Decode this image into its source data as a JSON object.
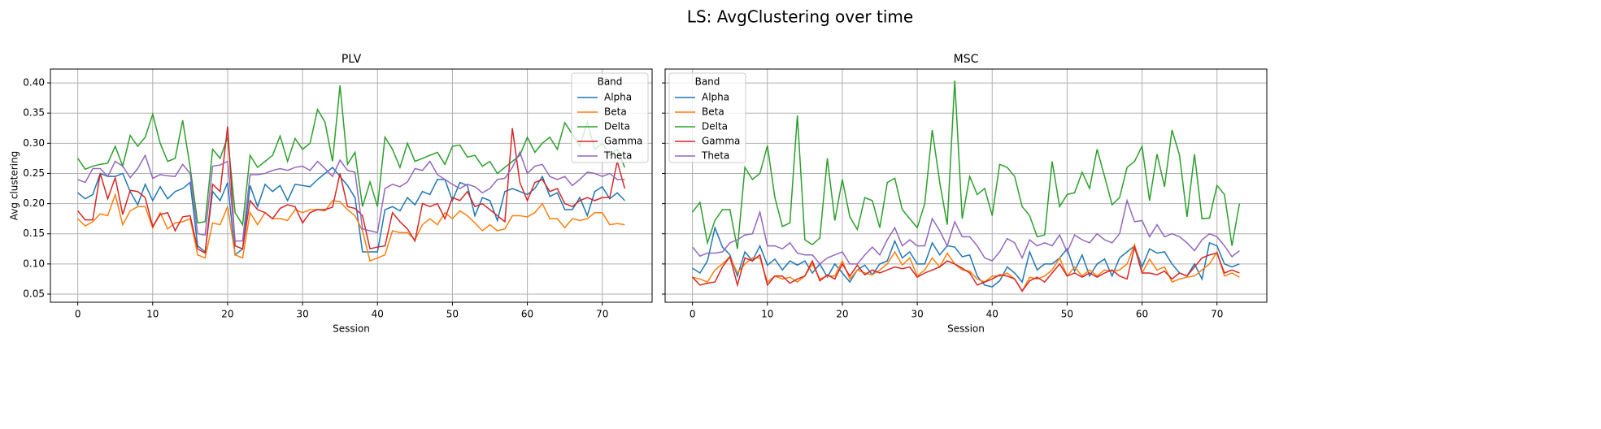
{
  "title": "LS: AvgClustering over time",
  "chart_data": [
    {
      "type": "line",
      "title": "PLV",
      "xlabel": "Session",
      "ylabel": "Avg clustering",
      "legend_title": "Band",
      "legend": "upper right",
      "grid": true,
      "x": [
        0,
        1,
        2,
        3,
        4,
        5,
        6,
        7,
        8,
        9,
        10,
        11,
        12,
        13,
        14,
        15,
        16,
        17,
        18,
        19,
        20,
        21,
        22,
        23,
        24,
        25,
        26,
        27,
        28,
        29,
        30,
        31,
        32,
        33,
        34,
        35,
        36,
        37,
        38,
        39,
        40,
        41,
        42,
        43,
        44,
        45,
        46,
        47,
        48,
        49,
        50,
        51,
        52,
        53,
        54,
        55,
        56,
        57,
        58,
        59,
        60,
        61,
        62,
        63,
        64,
        65,
        66,
        67,
        68,
        69,
        70,
        71,
        72,
        73
      ],
      "xlim": [
        -3.65,
        76.65
      ],
      "xticks": [
        0,
        10,
        20,
        30,
        40,
        50,
        60,
        70
      ],
      "ylim": [
        0.0365,
        0.423
      ],
      "yticks": [
        {
          "value": 0.05,
          "label": "0.05"
        },
        {
          "value": 0.1,
          "label": "0.10"
        },
        {
          "value": 0.15,
          "label": "0.15"
        },
        {
          "value": 0.2,
          "label": "0.20"
        },
        {
          "value": 0.25,
          "label": "0.25"
        },
        {
          "value": 0.3,
          "label": "0.30"
        },
        {
          "value": 0.35,
          "label": "0.35"
        },
        {
          "value": 0.4,
          "label": "0.40"
        }
      ],
      "series": [
        {
          "name": "Alpha",
          "color": "#1f77b4",
          "values": [
            0.218,
            0.208,
            0.215,
            0.25,
            0.245,
            0.245,
            0.25,
            0.22,
            0.198,
            0.232,
            0.205,
            0.228,
            0.208,
            0.22,
            0.225,
            0.235,
            0.13,
            0.12,
            0.22,
            0.205,
            0.235,
            0.115,
            0.125,
            0.23,
            0.195,
            0.232,
            0.22,
            0.23,
            0.205,
            0.232,
            0.23,
            0.228,
            0.24,
            0.25,
            0.26,
            0.245,
            0.23,
            0.21,
            0.12,
            0.12,
            0.12,
            0.19,
            0.195,
            0.188,
            0.21,
            0.198,
            0.22,
            0.215,
            0.24,
            0.24,
            0.205,
            0.235,
            0.23,
            0.18,
            0.21,
            0.205,
            0.172,
            0.22,
            0.225,
            0.22,
            0.215,
            0.225,
            0.245,
            0.212,
            0.218,
            0.19,
            0.19,
            0.21,
            0.18,
            0.22,
            0.228,
            0.208,
            0.218,
            0.205
          ]
        },
        {
          "name": "Beta",
          "color": "#ff7f0e",
          "values": [
            0.175,
            0.163,
            0.17,
            0.183,
            0.18,
            0.215,
            0.165,
            0.188,
            0.195,
            0.195,
            0.16,
            0.185,
            0.158,
            0.168,
            0.17,
            0.175,
            0.115,
            0.11,
            0.168,
            0.165,
            0.195,
            0.115,
            0.11,
            0.185,
            0.165,
            0.185,
            0.175,
            0.175,
            0.172,
            0.19,
            0.185,
            0.19,
            0.19,
            0.188,
            0.205,
            0.203,
            0.19,
            0.18,
            0.155,
            0.105,
            0.11,
            0.115,
            0.155,
            0.152,
            0.152,
            0.14,
            0.165,
            0.175,
            0.165,
            0.185,
            0.175,
            0.188,
            0.18,
            0.168,
            0.155,
            0.165,
            0.155,
            0.158,
            0.18,
            0.18,
            0.178,
            0.185,
            0.2,
            0.175,
            0.175,
            0.16,
            0.175,
            0.172,
            0.175,
            0.185,
            0.185,
            0.165,
            0.167,
            0.165
          ]
        },
        {
          "name": "Delta",
          "color": "#2ca02c",
          "values": [
            0.275,
            0.257,
            0.262,
            0.265,
            0.267,
            0.295,
            0.262,
            0.313,
            0.295,
            0.31,
            0.348,
            0.3,
            0.27,
            0.275,
            0.338,
            0.26,
            0.168,
            0.17,
            0.29,
            0.275,
            0.31,
            0.185,
            0.165,
            0.28,
            0.26,
            0.27,
            0.28,
            0.312,
            0.27,
            0.308,
            0.29,
            0.3,
            0.356,
            0.335,
            0.27,
            0.396,
            0.265,
            0.285,
            0.195,
            0.236,
            0.195,
            0.31,
            0.29,
            0.26,
            0.3,
            0.27,
            0.275,
            0.28,
            0.285,
            0.265,
            0.295,
            0.297,
            0.277,
            0.28,
            0.262,
            0.27,
            0.25,
            0.26,
            0.27,
            0.28,
            0.31,
            0.285,
            0.3,
            0.31,
            0.29,
            0.334,
            0.315,
            0.295,
            0.335,
            0.29,
            0.3,
            0.28,
            0.29,
            0.26
          ]
        },
        {
          "name": "Gamma",
          "color": "#d62728",
          "values": [
            0.188,
            0.173,
            0.173,
            0.25,
            0.208,
            0.243,
            0.182,
            0.222,
            0.22,
            0.21,
            0.162,
            0.182,
            0.185,
            0.155,
            0.178,
            0.18,
            0.125,
            0.118,
            0.232,
            0.22,
            0.328,
            0.13,
            0.125,
            0.205,
            0.19,
            0.185,
            0.175,
            0.192,
            0.198,
            0.195,
            0.168,
            0.185,
            0.19,
            0.19,
            0.194,
            0.25,
            0.195,
            0.192,
            0.18,
            0.125,
            0.128,
            0.13,
            0.185,
            0.17,
            0.158,
            0.138,
            0.2,
            0.195,
            0.2,
            0.175,
            0.21,
            0.205,
            0.22,
            0.195,
            0.2,
            0.19,
            0.18,
            0.17,
            0.325,
            0.235,
            0.205,
            0.235,
            0.24,
            0.22,
            0.225,
            0.2,
            0.195,
            0.205,
            0.21,
            0.205,
            0.21,
            0.21,
            0.27,
            0.225
          ]
        },
        {
          "name": "Theta",
          "color": "#9467bd",
          "values": [
            0.24,
            0.235,
            0.258,
            0.258,
            0.245,
            0.27,
            0.262,
            0.243,
            0.258,
            0.28,
            0.242,
            0.248,
            0.246,
            0.245,
            0.265,
            0.25,
            0.15,
            0.148,
            0.262,
            0.264,
            0.27,
            0.138,
            0.138,
            0.248,
            0.248,
            0.25,
            0.255,
            0.258,
            0.255,
            0.26,
            0.262,
            0.255,
            0.27,
            0.258,
            0.245,
            0.272,
            0.255,
            0.252,
            0.158,
            0.155,
            0.152,
            0.225,
            0.232,
            0.228,
            0.236,
            0.258,
            0.255,
            0.27,
            0.248,
            0.24,
            0.232,
            0.225,
            0.232,
            0.228,
            0.218,
            0.225,
            0.24,
            0.242,
            0.26,
            0.285,
            0.25,
            0.262,
            0.265,
            0.245,
            0.24,
            0.245,
            0.23,
            0.24,
            0.252,
            0.25,
            0.245,
            0.25,
            0.24,
            0.24
          ]
        }
      ]
    },
    {
      "type": "line",
      "title": "MSC",
      "xlabel": "Session",
      "legend_title": "Band",
      "legend": "upper left",
      "grid": true,
      "x": [
        0,
        1,
        2,
        3,
        4,
        5,
        6,
        7,
        8,
        9,
        10,
        11,
        12,
        13,
        14,
        15,
        16,
        17,
        18,
        19,
        20,
        21,
        22,
        23,
        24,
        25,
        26,
        27,
        28,
        29,
        30,
        31,
        32,
        33,
        34,
        35,
        36,
        37,
        38,
        39,
        40,
        41,
        42,
        43,
        44,
        45,
        46,
        47,
        48,
        49,
        50,
        51,
        52,
        53,
        54,
        55,
        56,
        57,
        58,
        59,
        60,
        61,
        62,
        63,
        64,
        65,
        66,
        67,
        68,
        69,
        70,
        71,
        72,
        73
      ],
      "xlim": [
        -3.65,
        76.65
      ],
      "xticks": [
        0,
        10,
        20,
        30,
        40,
        50,
        60,
        70
      ],
      "ylim": [
        0.0365,
        0.423
      ],
      "yticks": [
        0.05,
        0.1,
        0.15,
        0.2,
        0.25,
        0.3,
        0.35,
        0.4
      ],
      "series": [
        {
          "name": "Alpha",
          "color": "#1f77b4",
          "values": [
            0.093,
            0.085,
            0.105,
            0.16,
            0.128,
            0.115,
            0.08,
            0.12,
            0.105,
            0.13,
            0.098,
            0.108,
            0.09,
            0.105,
            0.098,
            0.105,
            0.085,
            0.1,
            0.078,
            0.1,
            0.085,
            0.07,
            0.09,
            0.098,
            0.082,
            0.1,
            0.105,
            0.138,
            0.11,
            0.12,
            0.1,
            0.1,
            0.135,
            0.115,
            0.13,
            0.128,
            0.112,
            0.115,
            0.08,
            0.065,
            0.062,
            0.072,
            0.095,
            0.085,
            0.07,
            0.12,
            0.09,
            0.1,
            0.1,
            0.11,
            0.125,
            0.088,
            0.115,
            0.08,
            0.1,
            0.108,
            0.08,
            0.11,
            0.12,
            0.13,
            0.095,
            0.125,
            0.118,
            0.12,
            0.1,
            0.085,
            0.08,
            0.1,
            0.075,
            0.135,
            0.13,
            0.1,
            0.095,
            0.1
          ]
        },
        {
          "name": "Beta",
          "color": "#ff7f0e",
          "values": [
            0.078,
            0.075,
            0.07,
            0.09,
            0.1,
            0.112,
            0.085,
            0.1,
            0.11,
            0.11,
            0.07,
            0.08,
            0.075,
            0.078,
            0.07,
            0.08,
            0.1,
            0.075,
            0.08,
            0.08,
            0.105,
            0.075,
            0.09,
            0.085,
            0.082,
            0.09,
            0.1,
            0.12,
            0.098,
            0.11,
            0.08,
            0.09,
            0.11,
            0.095,
            0.118,
            0.1,
            0.09,
            0.088,
            0.075,
            0.07,
            0.08,
            0.08,
            0.085,
            0.075,
            0.055,
            0.078,
            0.075,
            0.08,
            0.09,
            0.11,
            0.08,
            0.095,
            0.08,
            0.09,
            0.08,
            0.09,
            0.088,
            0.09,
            0.1,
            0.132,
            0.085,
            0.108,
            0.09,
            0.095,
            0.07,
            0.075,
            0.078,
            0.08,
            0.09,
            0.1,
            0.12,
            0.08,
            0.085,
            0.078
          ]
        },
        {
          "name": "Delta",
          "color": "#2ca02c",
          "values": [
            0.186,
            0.202,
            0.135,
            0.172,
            0.19,
            0.19,
            0.125,
            0.26,
            0.24,
            0.25,
            0.296,
            0.21,
            0.162,
            0.168,
            0.346,
            0.14,
            0.132,
            0.143,
            0.275,
            0.172,
            0.24,
            0.178,
            0.157,
            0.21,
            0.205,
            0.16,
            0.235,
            0.242,
            0.19,
            0.175,
            0.16,
            0.2,
            0.322,
            0.235,
            0.165,
            0.404,
            0.175,
            0.245,
            0.215,
            0.225,
            0.18,
            0.265,
            0.26,
            0.245,
            0.195,
            0.18,
            0.145,
            0.148,
            0.27,
            0.195,
            0.215,
            0.218,
            0.252,
            0.225,
            0.29,
            0.245,
            0.198,
            0.21,
            0.26,
            0.27,
            0.295,
            0.205,
            0.282,
            0.228,
            0.322,
            0.28,
            0.178,
            0.282,
            0.175,
            0.176,
            0.23,
            0.215,
            0.13,
            0.2
          ]
        },
        {
          "name": "Gamma",
          "color": "#d62728",
          "values": [
            0.078,
            0.065,
            0.068,
            0.07,
            0.095,
            0.112,
            0.065,
            0.11,
            0.105,
            0.115,
            0.065,
            0.08,
            0.08,
            0.068,
            0.075,
            0.08,
            0.105,
            0.072,
            0.082,
            0.075,
            0.1,
            0.08,
            0.098,
            0.082,
            0.09,
            0.085,
            0.09,
            0.095,
            0.092,
            0.095,
            0.078,
            0.085,
            0.09,
            0.095,
            0.105,
            0.1,
            0.093,
            0.085,
            0.065,
            0.07,
            0.075,
            0.082,
            0.08,
            0.075,
            0.055,
            0.072,
            0.078,
            0.07,
            0.085,
            0.1,
            0.08,
            0.085,
            0.078,
            0.085,
            0.078,
            0.085,
            0.09,
            0.08,
            0.075,
            0.128,
            0.085,
            0.085,
            0.082,
            0.088,
            0.075,
            0.085,
            0.08,
            0.095,
            0.11,
            0.115,
            0.118,
            0.085,
            0.09,
            0.085
          ]
        },
        {
          "name": "Theta",
          "color": "#9467bd",
          "values": [
            0.128,
            0.113,
            0.118,
            0.118,
            0.12,
            0.135,
            0.14,
            0.148,
            0.15,
            0.186,
            0.13,
            0.13,
            0.125,
            0.135,
            0.118,
            0.115,
            0.115,
            0.1,
            0.11,
            0.115,
            0.12,
            0.1,
            0.1,
            0.115,
            0.128,
            0.115,
            0.14,
            0.16,
            0.13,
            0.14,
            0.13,
            0.13,
            0.175,
            0.155,
            0.13,
            0.17,
            0.145,
            0.145,
            0.13,
            0.11,
            0.105,
            0.12,
            0.142,
            0.135,
            0.11,
            0.14,
            0.13,
            0.135,
            0.13,
            0.148,
            0.12,
            0.148,
            0.14,
            0.135,
            0.15,
            0.14,
            0.135,
            0.15,
            0.205,
            0.17,
            0.172,
            0.145,
            0.165,
            0.145,
            0.15,
            0.145,
            0.135,
            0.122,
            0.14,
            0.15,
            0.145,
            0.13,
            0.112,
            0.122
          ]
        }
      ]
    }
  ]
}
